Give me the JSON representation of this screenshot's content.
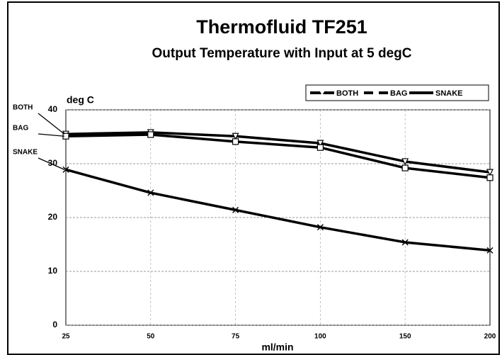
{
  "chart_data": {
    "type": "line",
    "title": "Thermofluid TF251",
    "subtitle": "Output Temperature with Input at 5 degC",
    "y_label": "deg C",
    "x_label": "ml/min",
    "categories": [
      "25",
      "50",
      "75",
      "100",
      "150",
      "200"
    ],
    "series": [
      {
        "name": "BOTH",
        "color": "#000000",
        "marker": "triangle-down",
        "values": [
          35.5,
          35.8,
          35.1,
          33.8,
          30.4,
          28.4
        ]
      },
      {
        "name": "BAG",
        "color": "#000000",
        "marker": "square",
        "values": [
          35.1,
          35.4,
          34.1,
          33.0,
          29.2,
          27.4
        ]
      },
      {
        "name": "SNAKE",
        "color": "#000000",
        "marker": "x",
        "values": [
          28.9,
          24.6,
          21.4,
          18.2,
          15.4,
          13.9
        ]
      }
    ],
    "annotations": [
      "BOTH",
      "BAG",
      "SNAKE"
    ],
    "ylim": [
      0,
      40
    ],
    "yticks": [
      0,
      10,
      20,
      30,
      40
    ],
    "grid": true,
    "legend": "top-right"
  }
}
